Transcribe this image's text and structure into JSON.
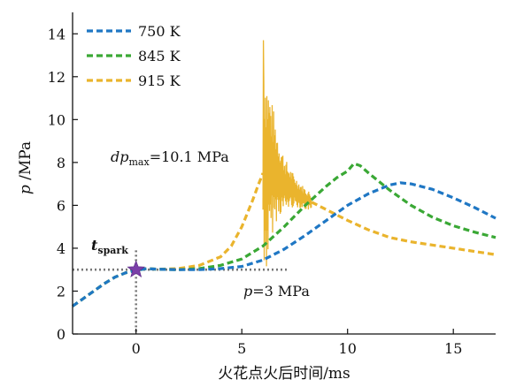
{
  "chart_data": {
    "type": "line",
    "xlabel": "火花点火后时间/ms",
    "ylabel_italic": "p",
    "ylabel_rest": " /MPa",
    "xlim": [
      -3,
      17
    ],
    "ylim": [
      0,
      15
    ],
    "xticks": [
      0,
      5,
      10,
      15
    ],
    "yticks": [
      0,
      2,
      4,
      6,
      8,
      10,
      12,
      14
    ],
    "legend_position": "top-left",
    "grid": false,
    "series": [
      {
        "name": "750 K",
        "color": "#1f77c4",
        "x": [
          -3,
          -2.5,
          -2,
          -1.5,
          -1,
          -0.5,
          0,
          0.5,
          1,
          2,
          3,
          4,
          5,
          6,
          7,
          8,
          9,
          10,
          11,
          12,
          12.5,
          13,
          14,
          15,
          16,
          17
        ],
        "y": [
          1.3,
          1.65,
          2.0,
          2.35,
          2.65,
          2.85,
          2.97,
          3.05,
          3.02,
          3.0,
          3.0,
          3.05,
          3.15,
          3.45,
          3.95,
          4.6,
          5.3,
          6.0,
          6.55,
          6.95,
          7.05,
          7.0,
          6.75,
          6.35,
          5.9,
          5.4
        ]
      },
      {
        "name": "845 K",
        "color": "#3aa835",
        "x": [
          -3,
          -2.5,
          -2,
          -1.5,
          -1,
          -0.5,
          0,
          0.5,
          1,
          2,
          3,
          4,
          5,
          6,
          7,
          8,
          9,
          9.5,
          10,
          10.3,
          10.6,
          11,
          12,
          13,
          14,
          15,
          16,
          17
        ],
        "y": [
          1.3,
          1.65,
          2.0,
          2.35,
          2.65,
          2.85,
          2.97,
          3.05,
          3.02,
          3.0,
          3.05,
          3.2,
          3.5,
          4.1,
          5.0,
          6.0,
          6.9,
          7.3,
          7.6,
          7.95,
          7.85,
          7.5,
          6.7,
          6.0,
          5.45,
          5.05,
          4.75,
          4.5
        ]
      },
      {
        "name": "915 K",
        "color": "#eab42d",
        "x": [
          -3,
          -2.5,
          -2,
          -1.5,
          -1,
          -0.5,
          0,
          0.5,
          1,
          2,
          3,
          4,
          4.5,
          5,
          5.5,
          5.8,
          6.0
        ],
        "y": [
          1.3,
          1.65,
          2.0,
          2.35,
          2.65,
          2.85,
          2.97,
          3.05,
          3.02,
          3.05,
          3.2,
          3.6,
          4.1,
          5.0,
          6.2,
          7.0,
          7.5
        ],
        "x_after_knock": [
          6.0,
          6.5,
          7,
          8,
          9,
          10,
          11,
          12,
          13,
          14,
          15,
          16,
          17
        ],
        "y_after_knock": [
          7.6,
          7.7,
          7.0,
          6.3,
          5.8,
          5.3,
          4.85,
          4.5,
          4.3,
          4.15,
          4.0,
          3.85,
          3.7
        ],
        "knock_peak": 13.7
      }
    ],
    "annotations": {
      "dp_italic": "dp",
      "dp_sub": "max",
      "dp_value": "=10.1 MPa",
      "p_italic": "p",
      "p_value": "=3 MPa",
      "tspark_italic": "t",
      "tspark_sub": "spark",
      "reference_pressure": 3,
      "spark_time": 0
    }
  }
}
